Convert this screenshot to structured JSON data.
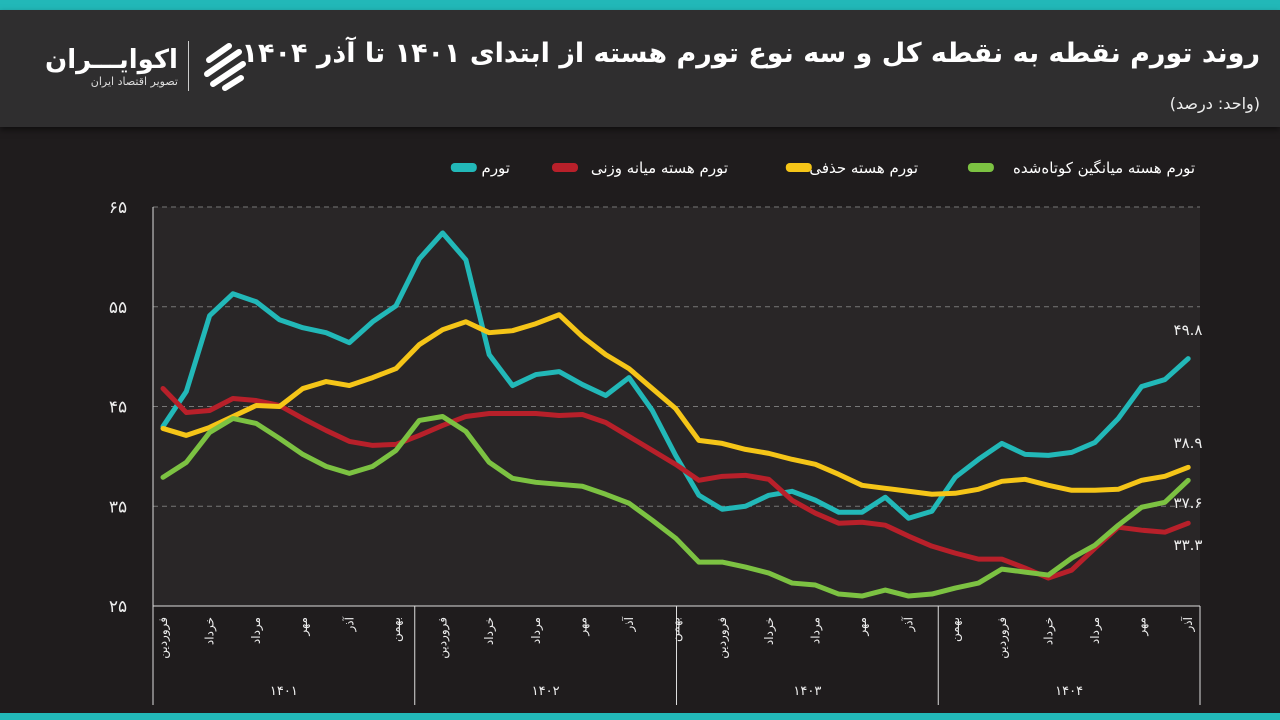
{
  "header": {
    "title": "روند تورم نقطه به نقطه کل و سه نوع تورم هسته از ابتدای ۱۴۰۱ تا آذر ۱۴۰۴",
    "unit": "(واحد: درصد)"
  },
  "logo": {
    "name": "اکوایـــران",
    "subtitle": "تصویر اقتصاد ایران"
  },
  "colors": {
    "accent": "#22b8b8",
    "header_bg": "#2f2e2f",
    "chart_bg": "#1f1c1d"
  },
  "chart_data": {
    "type": "line",
    "ylim": [
      25,
      65
    ],
    "yticks": [
      {
        "v": 65,
        "label": "۶۵"
      },
      {
        "v": 55,
        "label": "۵۵"
      },
      {
        "v": 45,
        "label": "۴۵"
      },
      {
        "v": 35,
        "label": "۳۵"
      },
      {
        "v": 25,
        "label": "۲۵"
      }
    ],
    "grid": true,
    "legend_position": "top",
    "years": [
      "۱۴۰۱",
      "۱۴۰۲",
      "۱۴۰۳",
      "۱۴۰۴"
    ],
    "month_tick_labels": [
      "فروردین",
      "خرداد",
      "مرداد",
      "مهر",
      "آذر",
      "بهمن"
    ],
    "x_count": 45,
    "series": [
      {
        "name": "تورم",
        "color": "#22b8b8",
        "end_label": "۴۹.۸",
        "values": [
          43.0,
          46.5,
          54.1,
          56.3,
          55.5,
          53.7,
          52.9,
          52.4,
          51.4,
          53.5,
          55.1,
          59.8,
          62.4,
          59.7,
          50.2,
          47.1,
          48.2,
          48.5,
          47.2,
          46.1,
          47.9,
          44.6,
          40.1,
          36.1,
          34.7,
          35.0,
          36.1,
          36.5,
          35.6,
          34.4,
          34.4,
          35.9,
          33.8,
          34.5,
          37.9,
          39.7,
          41.3,
          40.2,
          40.1,
          40.4,
          41.4,
          43.8,
          47.0,
          47.7,
          49.8
        ]
      },
      {
        "name": "تورم هسته میانه وزنی",
        "color": "#b8202a",
        "end_label": "۳۳.۳",
        "values": [
          46.8,
          44.4,
          44.6,
          45.8,
          45.6,
          45.1,
          43.8,
          42.6,
          41.5,
          41.1,
          41.2,
          42.1,
          43.1,
          44.0,
          44.3,
          44.3,
          44.3,
          44.1,
          44.2,
          43.4,
          42.0,
          40.6,
          39.2,
          37.6,
          38.0,
          38.1,
          37.7,
          35.6,
          34.3,
          33.3,
          33.4,
          33.1,
          32.0,
          31.0,
          30.3,
          29.7,
          29.7,
          28.8,
          27.8,
          28.6,
          30.8,
          32.9,
          32.6,
          32.4,
          33.3
        ]
      },
      {
        "name": "تورم هسته حذفی",
        "color": "#f5c518",
        "end_label": "۳۸.۹",
        "values": [
          42.8,
          42.1,
          42.9,
          44.0,
          45.1,
          45.0,
          46.8,
          47.5,
          47.1,
          47.9,
          48.8,
          51.2,
          52.7,
          53.5,
          52.4,
          52.6,
          53.3,
          54.2,
          52.0,
          50.2,
          48.8,
          46.8,
          44.8,
          41.6,
          41.3,
          40.7,
          40.3,
          39.7,
          39.2,
          38.2,
          37.1,
          36.8,
          36.5,
          36.2,
          36.3,
          36.7,
          37.5,
          37.7,
          37.1,
          36.6,
          36.6,
          36.7,
          37.6,
          38.0,
          38.9
        ]
      },
      {
        "name": "تورم هسته میانگین کوتاه‌شده",
        "color": "#7cc242",
        "end_label": "۳۷.۶",
        "values": [
          37.9,
          39.4,
          42.4,
          43.8,
          43.3,
          41.8,
          40.2,
          39.0,
          38.3,
          39.0,
          40.6,
          43.6,
          44.0,
          42.5,
          39.4,
          37.8,
          37.4,
          37.2,
          37.0,
          36.2,
          35.3,
          33.6,
          31.8,
          29.4,
          29.4,
          28.9,
          28.3,
          27.3,
          27.1,
          26.2,
          26.0,
          26.6,
          26.0,
          26.2,
          26.8,
          27.3,
          28.7,
          28.4,
          28.1,
          29.8,
          31.1,
          33.1,
          34.9,
          35.4,
          37.6
        ]
      }
    ]
  }
}
